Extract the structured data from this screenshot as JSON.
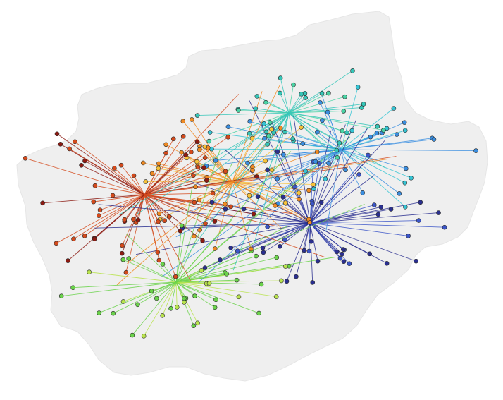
{
  "map": {
    "background_color": "#ffffff",
    "region_color": "#efefef",
    "clusters": [
      {
        "name": "cluster-darkblue",
        "color": "#2a2f8f",
        "secondary": "#3b55c8"
      },
      {
        "name": "cluster-lightblue",
        "color": "#3a8ee0",
        "secondary": "#35c4d4"
      },
      {
        "name": "cluster-cyan",
        "color": "#35c6b8",
        "secondary": "#49d3a4"
      },
      {
        "name": "cluster-green",
        "color": "#6ad24a",
        "secondary": "#b8e34c"
      },
      {
        "name": "cluster-orange",
        "color": "#f08a22",
        "secondary": "#f6c23a"
      },
      {
        "name": "cluster-red",
        "color": "#d44a1c",
        "secondary": "#8c1a12"
      }
    ]
  }
}
